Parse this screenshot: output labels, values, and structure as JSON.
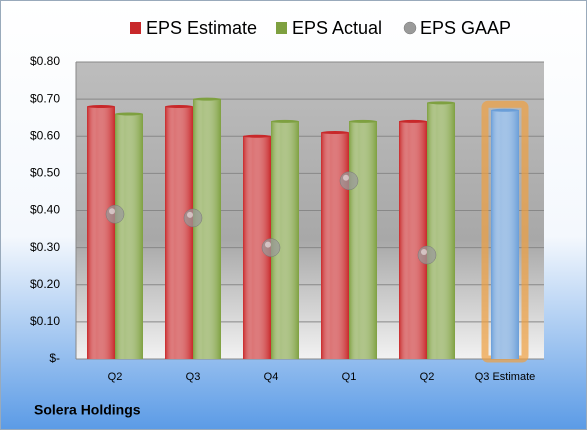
{
  "chart_data": {
    "type": "bar",
    "categories": [
      "Q2",
      "Q3",
      "Q4",
      "Q1",
      "Q2",
      "Q3 Estimate"
    ],
    "series": [
      {
        "name": "EPS Estimate",
        "color": "#c8282a",
        "colors": [
          "#c8282a",
          "#c8282a",
          "#c8282a",
          "#c8282a",
          "#c8282a",
          "#6a9ed8"
        ],
        "values": [
          0.68,
          0.68,
          0.6,
          0.61,
          0.64,
          0.67
        ]
      },
      {
        "name": "EPS Actual",
        "color": "#7ea040",
        "values": [
          0.66,
          0.7,
          0.64,
          0.64,
          0.69,
          null
        ]
      },
      {
        "name": "EPS GAAP",
        "color": "#9a9a9a",
        "mark": "circle",
        "values": [
          0.39,
          0.38,
          0.3,
          0.48,
          0.28,
          null
        ]
      }
    ],
    "highlight_color": "#f0a040",
    "ylim": [
      0,
      0.8
    ],
    "yticks": [
      {
        "value": 0,
        "label": "$-"
      },
      {
        "value": 0.1,
        "label": "$0.10"
      },
      {
        "value": 0.2,
        "label": "$0.20"
      },
      {
        "value": 0.3,
        "label": "$0.30"
      },
      {
        "value": 0.4,
        "label": "$0.40"
      },
      {
        "value": 0.5,
        "label": "$0.50"
      },
      {
        "value": 0.6,
        "label": "$0.60"
      },
      {
        "value": 0.7,
        "label": "$0.70"
      },
      {
        "value": 0.8,
        "label": "$0.80"
      }
    ],
    "grid": true,
    "footer": "Solera Holdings"
  }
}
